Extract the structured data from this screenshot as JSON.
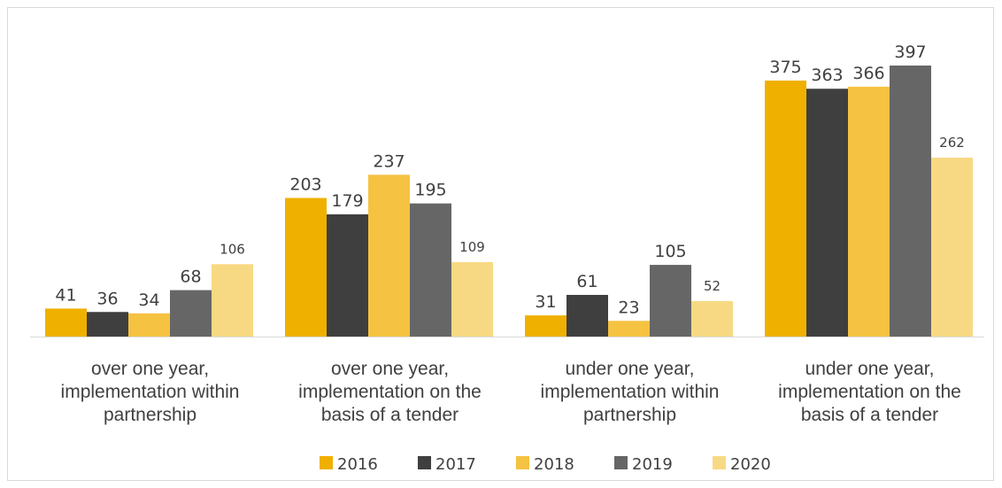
{
  "chart_data": {
    "type": "bar",
    "categories": [
      [
        "over one year,",
        "implementation within",
        "partnership"
      ],
      [
        "over one year,",
        "implementation on the",
        "basis of a tender"
      ],
      [
        "under one year,",
        "implementation within",
        "partnership"
      ],
      [
        "under one year,",
        "implementation on the",
        "basis of a tender"
      ]
    ],
    "series": [
      {
        "name": "2016",
        "color": "#f0b000",
        "values": [
          41,
          203,
          31,
          375
        ]
      },
      {
        "name": "2017",
        "color": "#3f3f3f",
        "values": [
          36,
          179,
          61,
          363
        ]
      },
      {
        "name": "2018",
        "color": "#f5c242",
        "values": [
          34,
          237,
          23,
          366
        ]
      },
      {
        "name": "2019",
        "color": "#666666",
        "values": [
          68,
          195,
          105,
          397
        ]
      },
      {
        "name": "2020",
        "color": "#f8d983",
        "values": [
          106,
          109,
          52,
          262
        ]
      }
    ],
    "ylim": [
      0,
      400
    ],
    "grid": false,
    "legend": "bottom",
    "title": "",
    "xlabel": "",
    "ylabel": ""
  }
}
